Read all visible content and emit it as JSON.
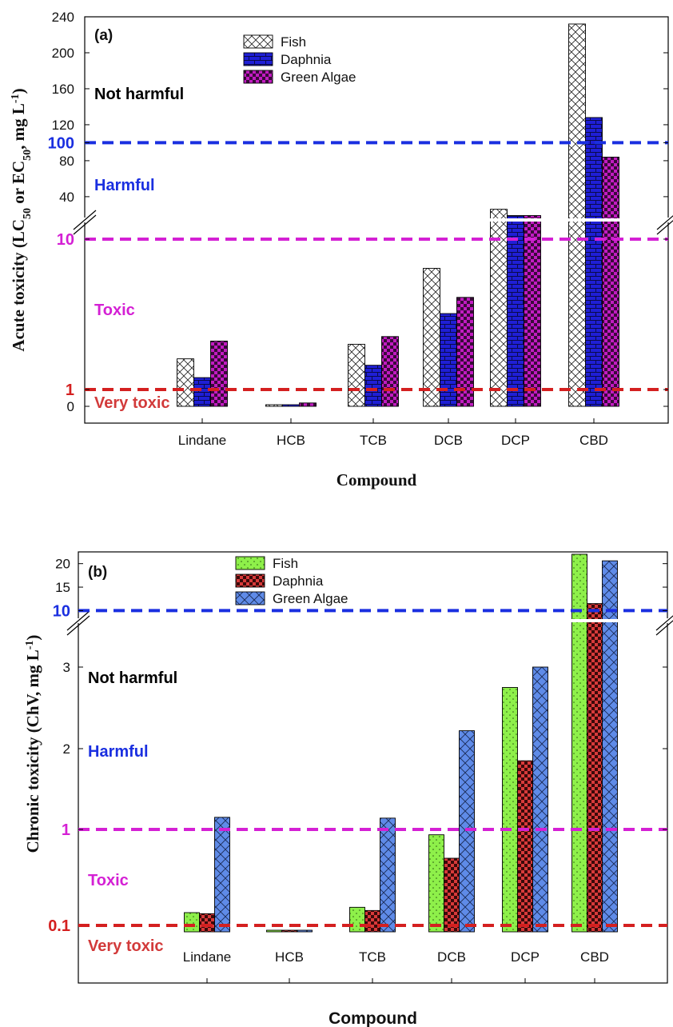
{
  "chart_data": [
    {
      "type": "bar",
      "panel_label": "(a)",
      "ylabel": "Acute toxicity (LC50 or EC50, mg L-1)",
      "ylabel_parts": {
        "pre": "Acute toxicity (LC",
        "sub1": "50",
        "mid": " or EC",
        "sub2": "50",
        "post": ", mg L",
        "sup": "-1",
        "end": ")"
      },
      "xlabel": "Compound",
      "categories": [
        "Lindane",
        "HCB",
        "TCB",
        "DCB",
        "DCP",
        "CBD"
      ],
      "series": [
        {
          "name": "Fish",
          "values": [
            1.6,
            0.03,
            2.0,
            6.4,
            26,
            232
          ]
        },
        {
          "name": "Daphnia",
          "values": [
            1.2,
            0.02,
            1.45,
            3.2,
            19,
            128
          ]
        },
        {
          "name": "Green Algae",
          "values": [
            2.1,
            0.2,
            2.25,
            4.1,
            19,
            84
          ]
        }
      ],
      "lower_yticks": [
        "0",
        "1",
        "10"
      ],
      "upper_yticks": [
        "40",
        "80",
        "100",
        "120",
        "160",
        "200",
        "240"
      ],
      "upper_ylim": [
        15,
        240
      ],
      "axis_break": true,
      "thresholds": [
        {
          "label": "100",
          "value": 100,
          "color": "#1a2fe0"
        },
        {
          "label": "10",
          "value": 10,
          "color": "#d420d4"
        },
        {
          "label": "1",
          "value": 1,
          "color": "#d42020"
        }
      ],
      "zones": [
        {
          "label": "Not harmful",
          "color": "#000000"
        },
        {
          "label": "Harmful",
          "color": "#1a2fe0"
        },
        {
          "label": "Toxic",
          "color": "#d420d4"
        },
        {
          "label": "Very toxic",
          "color": "#d23a3a"
        }
      ]
    },
    {
      "type": "bar",
      "panel_label": "(b)",
      "ylabel": "Chronic toxicity (ChV, mg L-1)",
      "ylabel_parts": {
        "pre": "Chronic toxicity (ChV, mg L",
        "sup": "-1",
        "end": ")"
      },
      "xlabel": "Compound",
      "categories": [
        "Lindane",
        "HCB",
        "TCB",
        "DCB",
        "DCP",
        "CBD"
      ],
      "series": [
        {
          "name": "Fish",
          "values": [
            0.22,
            0.005,
            0.27,
            0.95,
            2.75,
            22
          ]
        },
        {
          "name": "Daphnia",
          "values": [
            0.21,
            0.004,
            0.24,
            0.73,
            1.85,
            11.5
          ]
        },
        {
          "name": "Green Algae",
          "values": [
            1.15,
            0.06,
            1.14,
            2.22,
            3.0,
            20.6
          ]
        }
      ],
      "lower_yticks": [
        "1",
        "2",
        "3"
      ],
      "upper_yticks": [
        "10",
        "15",
        "20"
      ],
      "upper_ylim": [
        8.2,
        22.5
      ],
      "axis_break": true,
      "thresholds": [
        {
          "label": "10",
          "value": 10,
          "color": "#1a2fe0"
        },
        {
          "label": "1",
          "value": 1,
          "color": "#d420d4"
        },
        {
          "label": "0.1",
          "value": 0.1,
          "color": "#d42020"
        }
      ],
      "zones": [
        {
          "label": "Not harmful",
          "color": "#000000"
        },
        {
          "label": "Harmful",
          "color": "#1a2fe0"
        },
        {
          "label": "Toxic",
          "color": "#d420d4"
        },
        {
          "label": "Very toxic",
          "color": "#d23a3a"
        }
      ]
    }
  ]
}
